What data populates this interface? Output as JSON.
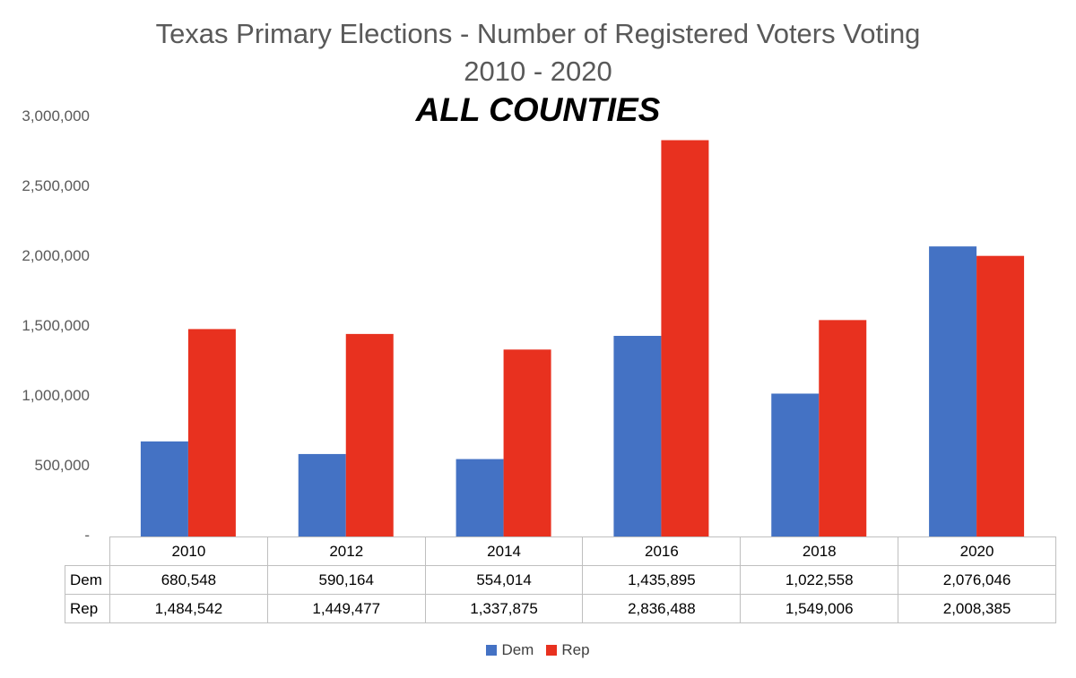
{
  "chart_data": {
    "type": "bar",
    "title": "Texas Primary Elections - Number of Registered Voters Voting",
    "subtitle": "2010 - 2020",
    "heading": "ALL COUNTIES",
    "categories": [
      "2010",
      "2012",
      "2014",
      "2016",
      "2018",
      "2020"
    ],
    "series": [
      {
        "name": "Dem",
        "color": "#4472c4",
        "values": [
          680548,
          590164,
          554014,
          1435895,
          1022558,
          2076046
        ],
        "labels": [
          "680,548",
          "590,164",
          "554,014",
          "1,435,895",
          "1,022,558",
          "2,076,046"
        ]
      },
      {
        "name": "Rep",
        "color": "#e8311f",
        "values": [
          1484542,
          1449477,
          1337875,
          2836488,
          1549006,
          2008385
        ],
        "labels": [
          "1,484,542",
          "1,449,477",
          "1,337,875",
          "2,836,488",
          "1,549,006",
          "2,008,385"
        ]
      }
    ],
    "yticks": [
      {
        "value": 0,
        "label": "-"
      },
      {
        "value": 500000,
        "label": "500,000"
      },
      {
        "value": 1000000,
        "label": "1,000,000"
      },
      {
        "value": 1500000,
        "label": "1,500,000"
      },
      {
        "value": 2000000,
        "label": "2,000,000"
      },
      {
        "value": 2500000,
        "label": "2,500,000"
      },
      {
        "value": 3000000,
        "label": "3,000,000"
      }
    ],
    "ylim": [
      0,
      3000000
    ],
    "grid": false,
    "legend": "bottom-center",
    "data_table": true
  }
}
